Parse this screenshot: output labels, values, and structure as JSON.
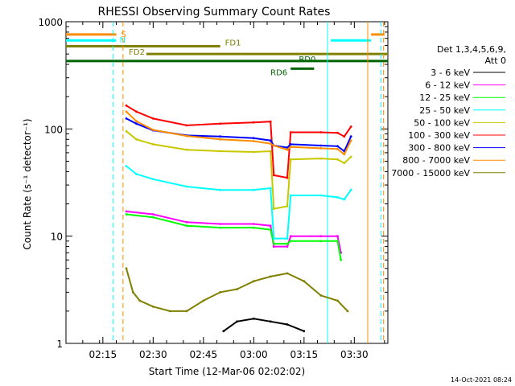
{
  "chart_data": {
    "type": "line",
    "title": "RHESSI Observing Summary Count Rates",
    "xlabel": "Start Time (12-Mar-06 02:02:02)",
    "ylabel": "Count Rate (s⁻¹ detector⁻¹)",
    "y_scale": "log",
    "ylim": [
      1,
      1000
    ],
    "xlim": [
      "02:04",
      "03:40"
    ],
    "x_ticks": [
      "02:15",
      "02:30",
      "02:45",
      "03:00",
      "03:15",
      "03:30"
    ],
    "y_ticks": [
      "1",
      "10",
      "100",
      "1000"
    ],
    "footer_date": "14-Oct-2021 08:24",
    "legend": {
      "header": [
        "Det 1,3,4,5,6,9,",
        "Att 0"
      ],
      "placement": "right"
    },
    "series": [
      {
        "name": "3 - 6 keV",
        "color": "#000000",
        "points": [
          [
            "02:51",
            1.3
          ],
          [
            "02:55",
            1.6
          ],
          [
            "03:00",
            1.7
          ],
          [
            "03:05",
            1.6
          ],
          [
            "03:10",
            1.5
          ],
          [
            "03:15",
            1.3
          ]
        ]
      },
      {
        "name": "6 - 12 keV",
        "color": "#ff00ff",
        "points": [
          [
            "02:22",
            17
          ],
          [
            "02:30",
            16
          ],
          [
            "02:40",
            13.5
          ],
          [
            "02:50",
            13
          ],
          [
            "03:00",
            13
          ],
          [
            "03:05",
            12.5
          ],
          [
            "03:06",
            8
          ],
          [
            "03:10",
            8
          ],
          [
            "03:11",
            10
          ],
          [
            "03:20",
            10
          ],
          [
            "03:25",
            10
          ],
          [
            "03:26",
            7
          ]
        ]
      },
      {
        "name": "12 - 25 keV",
        "color": "#00ff00",
        "points": [
          [
            "02:22",
            16
          ],
          [
            "02:30",
            15
          ],
          [
            "02:40",
            12.5
          ],
          [
            "02:50",
            12
          ],
          [
            "03:00",
            12
          ],
          [
            "03:05",
            11.5
          ],
          [
            "03:06",
            8.5
          ],
          [
            "03:10",
            8.5
          ],
          [
            "03:11",
            9
          ],
          [
            "03:20",
            9
          ],
          [
            "03:25",
            9
          ],
          [
            "03:26",
            6
          ]
        ]
      },
      {
        "name": "25 - 50 keV",
        "color": "#00ffff",
        "points": [
          [
            "02:22",
            45
          ],
          [
            "02:25",
            38
          ],
          [
            "02:30",
            34
          ],
          [
            "02:40",
            29
          ],
          [
            "02:50",
            27
          ],
          [
            "03:00",
            27
          ],
          [
            "03:05",
            28
          ],
          [
            "03:06",
            9.5
          ],
          [
            "03:10",
            9.5
          ],
          [
            "03:11",
            24
          ],
          [
            "03:20",
            24
          ],
          [
            "03:25",
            23
          ],
          [
            "03:27",
            22
          ],
          [
            "03:29",
            27
          ]
        ]
      },
      {
        "name": "50 - 100 keV",
        "color": "#c8c800",
        "points": [
          [
            "02:22",
            95
          ],
          [
            "02:25",
            80
          ],
          [
            "02:30",
            72
          ],
          [
            "02:40",
            64
          ],
          [
            "02:50",
            62
          ],
          [
            "03:00",
            61
          ],
          [
            "03:05",
            62
          ],
          [
            "03:06",
            18
          ],
          [
            "03:10",
            19
          ],
          [
            "03:11",
            52
          ],
          [
            "03:20",
            53
          ],
          [
            "03:25",
            52
          ],
          [
            "03:27",
            48
          ],
          [
            "03:29",
            55
          ]
        ]
      },
      {
        "name": "100 - 300 keV",
        "color": "#ff0000",
        "points": [
          [
            "02:22",
            165
          ],
          [
            "02:25",
            145
          ],
          [
            "02:30",
            125
          ],
          [
            "02:40",
            108
          ],
          [
            "02:50",
            112
          ],
          [
            "03:00",
            115
          ],
          [
            "03:05",
            117
          ],
          [
            "03:06",
            37
          ],
          [
            "03:10",
            35
          ],
          [
            "03:11",
            93
          ],
          [
            "03:20",
            93
          ],
          [
            "03:25",
            92
          ],
          [
            "03:27",
            85
          ],
          [
            "03:29",
            105
          ]
        ]
      },
      {
        "name": "300 - 800 keV",
        "color": "#0000ff",
        "points": [
          [
            "02:22",
            125
          ],
          [
            "02:25",
            112
          ],
          [
            "02:30",
            97
          ],
          [
            "02:40",
            87
          ],
          [
            "02:50",
            85
          ],
          [
            "03:00",
            82
          ],
          [
            "03:05",
            78
          ],
          [
            "03:06",
            70
          ],
          [
            "03:10",
            67
          ],
          [
            "03:11",
            72
          ],
          [
            "03:20",
            70
          ],
          [
            "03:25",
            69
          ],
          [
            "03:27",
            62
          ],
          [
            "03:29",
            85
          ]
        ]
      },
      {
        "name": "800 - 7000 keV",
        "color": "#ff8c00",
        "points": [
          [
            "02:22",
            145
          ],
          [
            "02:25",
            118
          ],
          [
            "02:30",
            98
          ],
          [
            "02:40",
            86
          ],
          [
            "02:50",
            80
          ],
          [
            "03:00",
            77
          ],
          [
            "03:05",
            73
          ],
          [
            "03:06",
            70
          ],
          [
            "03:10",
            64
          ],
          [
            "03:11",
            68
          ],
          [
            "03:20",
            66
          ],
          [
            "03:25",
            65
          ],
          [
            "03:27",
            58
          ],
          [
            "03:29",
            78
          ]
        ]
      },
      {
        "name": "7000 - 15000 keV",
        "color": "#808000",
        "points": [
          [
            "02:22",
            5
          ],
          [
            "02:24",
            3
          ],
          [
            "02:26",
            2.5
          ],
          [
            "02:30",
            2.2
          ],
          [
            "02:35",
            2.0
          ],
          [
            "02:40",
            2.0
          ],
          [
            "02:45",
            2.5
          ],
          [
            "02:50",
            3.0
          ],
          [
            "02:55",
            3.2
          ],
          [
            "03:00",
            3.8
          ],
          [
            "03:05",
            4.2
          ],
          [
            "03:10",
            4.5
          ],
          [
            "03:15",
            3.8
          ],
          [
            "03:20",
            2.8
          ],
          [
            "03:25",
            2.5
          ],
          [
            "03:28",
            2.0
          ]
        ]
      }
    ],
    "flags": [
      {
        "label": "S",
        "color": "#ff8c00",
        "segments": [
          [
            "02:04",
            "02:19"
          ],
          [
            "03:35",
            "03:39"
          ]
        ],
        "level": 760
      },
      {
        "label": "N",
        "color": "#00ffff",
        "segments": [
          [
            "02:04",
            "02:19"
          ],
          [
            "03:23",
            "03:35"
          ]
        ],
        "level": 670
      },
      {
        "label": "FD1",
        "color": "#808000",
        "segments": [
          [
            "02:04",
            "02:50"
          ]
        ],
        "level": 590
      },
      {
        "label": "FD2",
        "color": "#808000",
        "segments": [
          [
            "02:28",
            "03:40"
          ]
        ],
        "level": 500
      },
      {
        "label": "RD0",
        "color": "#006400",
        "segments": [
          [
            "02:04",
            "03:40"
          ]
        ],
        "level": 430
      },
      {
        "label": "RD6",
        "color": "#006400",
        "segments": [
          [
            "03:11",
            "03:18"
          ]
        ],
        "level": 365
      }
    ],
    "vertical_markers": [
      {
        "time": "02:18",
        "color": "#00ffff",
        "style": "dashed"
      },
      {
        "time": "02:21",
        "color": "#ff8c00",
        "style": "dashed"
      },
      {
        "time": "03:22",
        "color": "#00ffff",
        "style": "solid"
      },
      {
        "time": "03:34",
        "color": "#ff8c00",
        "style": "solid"
      },
      {
        "time": "03:38",
        "color": "#00ffff",
        "style": "dashed"
      },
      {
        "time": "03:38",
        "color": "#ff8c00",
        "style": "dashed"
      }
    ]
  }
}
